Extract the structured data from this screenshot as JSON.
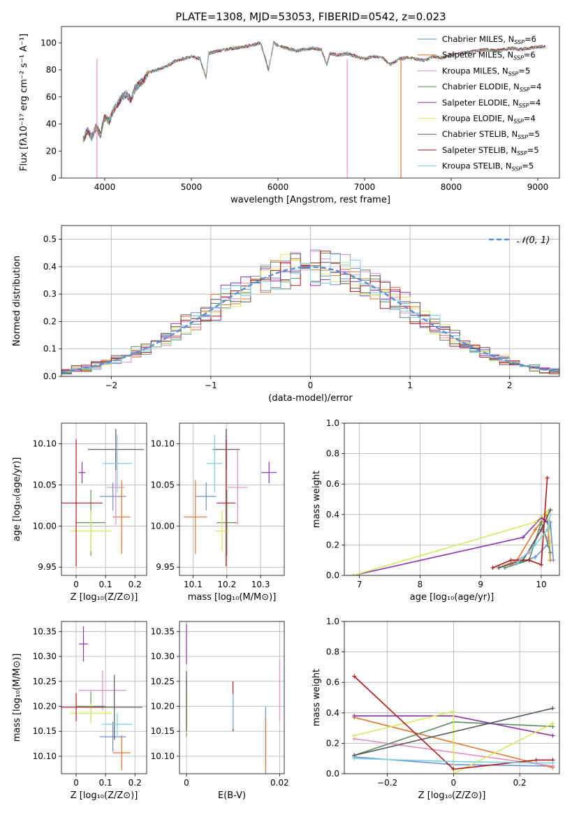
{
  "figure_title": "PLATE=1308, MJD=53053, FIBERID=0542, z=0.023",
  "models": [
    {
      "name": "Chabrier MILES",
      "nssp": "6",
      "color": "#6b8fd0"
    },
    {
      "name": "Salpeter MILES",
      "nssp": "6",
      "color": "#e8732a"
    },
    {
      "name": "Kroupa MILES",
      "nssp": "5",
      "color": "#e78ac3"
    },
    {
      "name": "Chabrier ELODIE",
      "nssp": "4",
      "color": "#5a8a5a"
    },
    {
      "name": "Salpeter ELODIE",
      "nssp": "4",
      "color": "#8b2fb0"
    },
    {
      "name": "Kroupa ELODIE",
      "nssp": "4",
      "color": "#d8e85a"
    },
    {
      "name": "Chabrier STELIB",
      "nssp": "5",
      "color": "#555555"
    },
    {
      "name": "Salpeter STELIB",
      "nssp": "5",
      "color": "#b01818"
    },
    {
      "name": "Kroupa STELIB",
      "nssp": "5",
      "color": "#78d0e0"
    }
  ],
  "chart_data": [
    {
      "id": "spectrum",
      "type": "line",
      "xlabel": "wavelength [Angstrom, rest frame]",
      "ylabel": "Flux [fλ10⁻¹⁷ erg cm⁻² s⁻¹ A⁻¹]",
      "xlim": [
        3500,
        9250
      ],
      "ylim": [
        0,
        112
      ],
      "xticks": [
        4000,
        5000,
        6000,
        7000,
        8000,
        9000
      ],
      "yticks": [
        0,
        20,
        40,
        60,
        80,
        100
      ],
      "grid": false,
      "legend_placement": "top-right",
      "x": [
        3750,
        3800,
        3850,
        3900,
        3950,
        4000,
        4050,
        4100,
        4150,
        4200,
        4250,
        4300,
        4350,
        4400,
        4450,
        4500,
        4600,
        4700,
        4800,
        4900,
        5000,
        5100,
        5170,
        5200,
        5300,
        5400,
        5500,
        5600,
        5700,
        5800,
        5890,
        5950,
        6000,
        6100,
        6200,
        6300,
        6400,
        6500,
        6563,
        6600,
        6700,
        6800,
        6900,
        7000,
        7100,
        7200,
        7300,
        7400,
        7500,
        7600,
        7700,
        7800,
        7900,
        8000,
        8100,
        8200,
        8300,
        8400,
        8500,
        8600,
        8700,
        8800,
        8900,
        9000,
        9100
      ],
      "y": [
        28,
        35,
        30,
        38,
        32,
        45,
        42,
        50,
        55,
        60,
        62,
        58,
        66,
        70,
        72,
        78,
        80,
        82,
        86,
        88,
        90,
        88,
        74,
        92,
        94,
        95,
        96,
        97,
        98,
        100,
        80,
        100,
        98,
        96,
        94,
        95,
        96,
        95,
        84,
        92,
        91,
        92,
        90,
        88,
        90,
        89,
        84,
        88,
        89,
        88,
        87,
        90,
        89,
        91,
        92,
        93,
        94,
        95,
        94,
        95,
        96,
        95,
        96,
        97,
        97
      ],
      "dips": [
        {
          "model": "Kroupa MILES",
          "x": 3910
        },
        {
          "model": "Kroupa MILES",
          "x": 6800
        },
        {
          "model": "Salpeter MILES",
          "x": 7420
        }
      ]
    },
    {
      "id": "residuals",
      "type": "histogram",
      "xlabel": "(data-model)/error",
      "ylabel": "Normed distribution",
      "xlim": [
        -2.5,
        2.5
      ],
      "ylim": [
        0,
        0.55
      ],
      "xticks": [
        -2,
        -1,
        0,
        1,
        2
      ],
      "yticks": [
        0.0,
        0.1,
        0.2,
        0.3,
        0.4,
        0.5
      ],
      "grid": true,
      "legend_placement": "top-right",
      "reference_curve": "𝒩(0, 1)",
      "bin_width": 0.1
    },
    {
      "id": "age_vs_Z",
      "type": "errorbar",
      "xlabel": "Z [log₁₀(Z/Z⊙)]",
      "ylabel": "age  [log₁₀(age/yr)]",
      "xlim": [
        -0.05,
        0.24
      ],
      "ylim": [
        9.94,
        10.125
      ],
      "xticks": [
        0.0,
        0.1,
        0.2
      ],
      "yticks": [
        9.95,
        10.0,
        10.05,
        10.1
      ],
      "grid": true,
      "points": [
        {
          "model": "Chabrier MILES",
          "x": 0.125,
          "y": 10.036,
          "xerr": 0.045,
          "yerr": 0.017
        },
        {
          "model": "Salpeter MILES",
          "x": 0.155,
          "y": 10.011,
          "xerr": 0.03,
          "yerr": 0.045
        },
        {
          "model": "Kroupa MILES",
          "x": 0.135,
          "y": 10.047,
          "xerr": 0.03,
          "yerr": 0.045
        },
        {
          "model": "Chabrier ELODIE",
          "x": 0.05,
          "y": 10.004,
          "xerr": 0.05,
          "yerr": 0.04
        },
        {
          "model": "Salpeter ELODIE",
          "x": 0.02,
          "y": 10.065,
          "xerr": 0.012,
          "yerr": 0.013
        },
        {
          "model": "Kroupa ELODIE",
          "x": 0.05,
          "y": 9.994,
          "xerr": 0.07,
          "yerr": 0.025
        },
        {
          "model": "Chabrier STELIB",
          "x": 0.135,
          "y": 10.093,
          "xerr": 0.095,
          "yerr": 0.025
        },
        {
          "model": "Salpeter STELIB",
          "x": 0.0,
          "y": 10.028,
          "xerr": 0.09,
          "yerr": 0.077
        },
        {
          "model": "Kroupa STELIB",
          "x": 0.14,
          "y": 10.076,
          "xerr": 0.05,
          "yerr": 0.035
        }
      ]
    },
    {
      "id": "age_vs_mass",
      "type": "errorbar",
      "xlabel": "mass [log₁₀(M/M⊙)]",
      "ylabel": "",
      "xlim": [
        10.06,
        10.37
      ],
      "ylim": [
        9.94,
        10.125
      ],
      "xticks": [
        10.1,
        10.2,
        10.3
      ],
      "yticks": [
        9.95,
        10.0,
        10.05,
        10.1
      ],
      "grid": true,
      "points": [
        {
          "model": "Chabrier MILES",
          "x": 10.139,
          "y": 10.036,
          "xerr": 0.03,
          "yerr": 0.017
        },
        {
          "model": "Salpeter MILES",
          "x": 10.107,
          "y": 10.011,
          "xerr": 0.035,
          "yerr": 0.045
        },
        {
          "model": "Kroupa MILES",
          "x": 10.232,
          "y": 10.047,
          "xerr": 0.03,
          "yerr": 0.045
        },
        {
          "model": "Chabrier ELODIE",
          "x": 10.2,
          "y": 10.004,
          "xerr": 0.03,
          "yerr": 0.04
        },
        {
          "model": "Salpeter ELODIE",
          "x": 10.325,
          "y": 10.065,
          "xerr": 0.023,
          "yerr": 0.013
        },
        {
          "model": "Kroupa ELODIE",
          "x": 10.186,
          "y": 9.994,
          "xerr": 0.02,
          "yerr": 0.025
        },
        {
          "model": "Chabrier STELIB",
          "x": 10.198,
          "y": 10.093,
          "xerr": 0.04,
          "yerr": 0.025
        },
        {
          "model": "Salpeter STELIB",
          "x": 10.198,
          "y": 10.028,
          "xerr": 0.028,
          "yerr": 0.077
        },
        {
          "model": "Kroupa STELIB",
          "x": 10.164,
          "y": 10.076,
          "xerr": 0.023,
          "yerr": 0.035
        }
      ]
    },
    {
      "id": "mass_weight_vs_age",
      "type": "line",
      "xlabel": "age  [log₁₀(age/yr)]",
      "ylabel": "mass weight",
      "xlim": [
        6.75,
        10.3
      ],
      "ylim": [
        0.0,
        1.0
      ],
      "xticks": [
        7,
        8,
        9,
        10
      ],
      "yticks": [
        0.0,
        0.2,
        0.4,
        0.6,
        0.8,
        1.0
      ],
      "grid": true,
      "series": [
        {
          "model": "Chabrier MILES",
          "x": [
            9.6,
            9.9,
            10.1,
            10.15,
            10.2
          ],
          "y": [
            0.08,
            0.12,
            0.2,
            0.35,
            0.1
          ]
        },
        {
          "model": "Salpeter MILES",
          "x": [
            9.3,
            9.6,
            9.9,
            10.1,
            10.15
          ],
          "y": [
            0.05,
            0.1,
            0.3,
            0.4,
            0.1
          ]
        },
        {
          "model": "Kroupa MILES",
          "x": [
            9.5,
            9.8,
            10.0,
            10.15
          ],
          "y": [
            0.07,
            0.15,
            0.3,
            0.22
          ]
        },
        {
          "model": "Chabrier ELODIE",
          "x": [
            9.4,
            9.8,
            10.0,
            10.15
          ],
          "y": [
            0.05,
            0.1,
            0.35,
            0.15
          ]
        },
        {
          "model": "Salpeter ELODIE",
          "x": [
            6.9,
            9.7,
            10.0,
            10.1
          ],
          "y": [
            0.0,
            0.25,
            0.38,
            0.35
          ]
        },
        {
          "model": "Kroupa ELODIE",
          "x": [
            6.9,
            9.9,
            10.1,
            10.15
          ],
          "y": [
            0.0,
            0.35,
            0.42,
            0.2
          ]
        },
        {
          "model": "Chabrier STELIB",
          "x": [
            9.3,
            9.7,
            10.0,
            10.15
          ],
          "y": [
            0.05,
            0.1,
            0.3,
            0.43
          ]
        },
        {
          "model": "Salpeter STELIB",
          "x": [
            9.2,
            9.5,
            9.8,
            10.0,
            10.1
          ],
          "y": [
            0.05,
            0.1,
            0.1,
            0.07,
            0.64
          ]
        },
        {
          "model": "Kroupa STELIB",
          "x": [
            9.6,
            9.9,
            10.1,
            10.15
          ],
          "y": [
            0.08,
            0.2,
            0.3,
            0.4
          ]
        }
      ]
    },
    {
      "id": "mass_vs_Z",
      "type": "errorbar",
      "xlabel": "Z [log₁₀(Z/Z⊙)]",
      "ylabel": "mass [log₁₀(M/M⊙)]",
      "xlim": [
        -0.05,
        0.24
      ],
      "ylim": [
        10.065,
        10.37
      ],
      "xticks": [
        0.0,
        0.1,
        0.2
      ],
      "yticks": [
        10.1,
        10.15,
        10.2,
        10.25,
        10.3,
        10.35
      ],
      "grid": true,
      "points": [
        {
          "model": "Chabrier MILES",
          "x": 0.125,
          "y": 10.139,
          "xerr": 0.045,
          "yerr": 0.03
        },
        {
          "model": "Salpeter MILES",
          "x": 0.155,
          "y": 10.107,
          "xerr": 0.03,
          "yerr": 0.035
        },
        {
          "model": "Kroupa MILES",
          "x": 0.09,
          "y": 10.232,
          "xerr": 0.08,
          "yerr": 0.04
        },
        {
          "model": "Chabrier ELODIE",
          "x": 0.05,
          "y": 10.2,
          "xerr": 0.05,
          "yerr": 0.03
        },
        {
          "model": "Salpeter ELODIE",
          "x": 0.025,
          "y": 10.325,
          "xerr": 0.015,
          "yerr": 0.035
        },
        {
          "model": "Kroupa ELODIE",
          "x": 0.05,
          "y": 10.186,
          "xerr": 0.07,
          "yerr": 0.02
        },
        {
          "model": "Chabrier STELIB",
          "x": 0.13,
          "y": 10.198,
          "xerr": 0.095,
          "yerr": 0.065
        },
        {
          "model": "Salpeter STELIB",
          "x": 0.0,
          "y": 10.198,
          "xerr": 0.09,
          "yerr": 0.028
        },
        {
          "model": "Kroupa STELIB",
          "x": 0.14,
          "y": 10.164,
          "xerr": 0.05,
          "yerr": 0.023
        }
      ]
    },
    {
      "id": "mass_vs_ebv",
      "type": "errorbar",
      "xlabel": "E(B-V)",
      "ylabel": "",
      "xlim": [
        -0.0015,
        0.021
      ],
      "ylim": [
        10.065,
        10.37
      ],
      "xticks": [
        0.0,
        0.02
      ],
      "yticks": [
        10.1,
        10.15,
        10.2,
        10.25,
        10.3,
        10.35
      ],
      "grid": true,
      "points": [
        {
          "model": "Chabrier MILES",
          "x": 0.017,
          "y": 10.139,
          "xerr": 0,
          "yerr": 0.06
        },
        {
          "model": "Salpeter MILES",
          "x": 0.017,
          "y": 10.107,
          "xerr": 0,
          "yerr": 0.07
        },
        {
          "model": "Kroupa MILES",
          "x": 0.02,
          "y": 10.232,
          "xerr": 0,
          "yerr": 0.06
        },
        {
          "model": "Chabrier ELODIE",
          "x": 0.0,
          "y": 10.2,
          "xerr": 0,
          "yerr": 0.06
        },
        {
          "model": "Salpeter ELODIE",
          "x": 0.0,
          "y": 10.325,
          "xerr": 0,
          "yerr": 0.04
        },
        {
          "model": "Kroupa ELODIE",
          "x": 0.0,
          "y": 10.186,
          "xerr": 0,
          "yerr": 0.04
        },
        {
          "model": "Chabrier STELIB",
          "x": 0.0,
          "y": 10.21,
          "xerr": 0,
          "yerr": 0.06
        },
        {
          "model": "Salpeter STELIB",
          "x": 0.01,
          "y": 10.2,
          "xerr": 0,
          "yerr": 0.05
        },
        {
          "model": "Kroupa STELIB",
          "x": 0.01,
          "y": 10.19,
          "xerr": 0,
          "yerr": 0.035
        }
      ]
    },
    {
      "id": "mass_weight_vs_Z",
      "type": "line",
      "xlabel": "Z [log₁₀(Z/Z⊙)]",
      "ylabel": "mass weight",
      "xlim": [
        -0.33,
        0.32
      ],
      "ylim": [
        0.0,
        1.0
      ],
      "xticks": [
        -0.2,
        0.0,
        0.2
      ],
      "yticks": [
        0.0,
        0.2,
        0.4,
        0.6,
        0.8,
        1.0
      ],
      "grid": true,
      "series": [
        {
          "model": "Chabrier MILES",
          "x": [
            -0.3,
            0.0,
            0.3
          ],
          "y": [
            0.11,
            0.06,
            0.05
          ]
        },
        {
          "model": "Salpeter MILES",
          "x": [
            -0.3,
            0.3
          ],
          "y": [
            0.37,
            0.04
          ]
        },
        {
          "model": "Kroupa MILES",
          "x": [
            -0.3,
            0.3
          ],
          "y": [
            0.23,
            0.05
          ]
        },
        {
          "model": "Chabrier ELODIE",
          "x": [
            -0.3,
            0.0,
            0.3
          ],
          "y": [
            0.12,
            0.34,
            0.31
          ]
        },
        {
          "model": "Salpeter ELODIE",
          "x": [
            -0.3,
            0.0,
            0.3
          ],
          "y": [
            0.38,
            0.38,
            0.25
          ]
        },
        {
          "model": "Kroupa ELODIE",
          "x": [
            -0.3,
            0.0,
            0.0,
            0.3
          ],
          "y": [
            0.25,
            0.41,
            0.0,
            0.33
          ]
        },
        {
          "model": "Chabrier STELIB",
          "x": [
            -0.3,
            0.3
          ],
          "y": [
            0.12,
            0.43
          ]
        },
        {
          "model": "Salpeter STELIB",
          "x": [
            -0.3,
            0.0,
            0.25,
            0.3
          ],
          "y": [
            0.64,
            0.03,
            0.09,
            0.09
          ]
        },
        {
          "model": "Kroupa STELIB",
          "x": [
            -0.3,
            0.0,
            0.3
          ],
          "y": [
            0.1,
            0.08,
            0.07
          ]
        }
      ]
    }
  ]
}
